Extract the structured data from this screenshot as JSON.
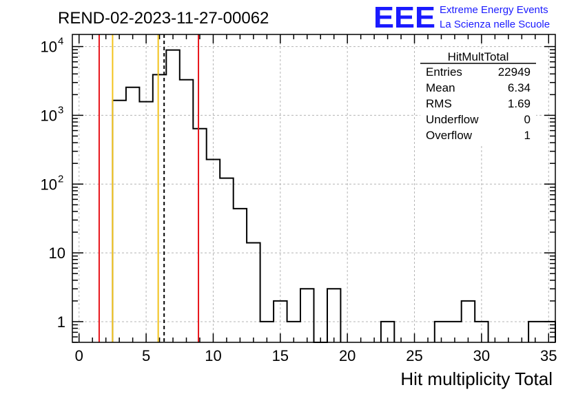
{
  "chart_data": {
    "type": "bar",
    "title": "REND-02-2023-11-27-00062",
    "xlabel": "Hit multiplicity Total",
    "ylabel": "",
    "xlim": [
      -0.5,
      35.5
    ],
    "ylim": [
      0.5,
      15000
    ],
    "log_y": true,
    "grid": true,
    "bin_width": 1,
    "bins": [
      {
        "x": 3,
        "value": 1650
      },
      {
        "x": 4,
        "value": 2550
      },
      {
        "x": 5,
        "value": 1580
      },
      {
        "x": 6,
        "value": 3900
      },
      {
        "x": 7,
        "value": 8900
      },
      {
        "x": 8,
        "value": 3300
      },
      {
        "x": 9,
        "value": 640
      },
      {
        "x": 10,
        "value": 228
      },
      {
        "x": 11,
        "value": 122
      },
      {
        "x": 12,
        "value": 44
      },
      {
        "x": 13,
        "value": 14
      },
      {
        "x": 14,
        "value": 1
      },
      {
        "x": 15,
        "value": 2
      },
      {
        "x": 16,
        "value": 1
      },
      {
        "x": 17,
        "value": 3
      },
      {
        "x": 18,
        "value": 0
      },
      {
        "x": 19,
        "value": 3
      },
      {
        "x": 23,
        "value": 1
      },
      {
        "x": 27,
        "value": 1
      },
      {
        "x": 28,
        "value": 1
      },
      {
        "x": 29,
        "value": 2
      },
      {
        "x": 30,
        "value": 1
      },
      {
        "x": 34,
        "value": 1
      },
      {
        "x": 35,
        "value": 1
      }
    ],
    "x_ticks": [
      0,
      5,
      10,
      15,
      20,
      25,
      30,
      35
    ],
    "x_tick_labels": [
      "0",
      "5",
      "10",
      "15",
      "20",
      "25",
      "30",
      "35"
    ],
    "y_ticks": [
      {
        "value": 1,
        "label": "1",
        "sup": ""
      },
      {
        "value": 10,
        "label": "10",
        "sup": ""
      },
      {
        "value": 100,
        "label": "10",
        "sup": "2"
      },
      {
        "value": 1000,
        "label": "10",
        "sup": "3"
      },
      {
        "value": 10000,
        "label": "10",
        "sup": "4"
      }
    ],
    "vertical_lines": [
      {
        "x": 1.5,
        "color": "#e8141a",
        "style": "solid"
      },
      {
        "x": 2.5,
        "color": "#f2c21b",
        "style": "solid"
      },
      {
        "x": 5.9,
        "color": "#f2c21b",
        "style": "solid"
      },
      {
        "x": 6.34,
        "color": "#000000",
        "style": "dashed"
      },
      {
        "x": 8.9,
        "color": "#e8141a",
        "style": "solid"
      }
    ],
    "colors": {
      "histogram": "#000000",
      "grid": "#b4b4b4",
      "logo": "#1a1aff"
    }
  },
  "stats": {
    "title": "HitMultTotal",
    "rows": [
      {
        "label": "Entries",
        "value": "22949"
      },
      {
        "label": "Mean",
        "value": "6.34"
      },
      {
        "label": "RMS",
        "value": "1.69"
      },
      {
        "label": "Underflow",
        "value": "0"
      },
      {
        "label": "Overflow",
        "value": "1"
      }
    ]
  },
  "logo": {
    "text": "EEE",
    "line1": "Extreme Energy Events",
    "line2": "La Scienza nelle Scuole"
  }
}
